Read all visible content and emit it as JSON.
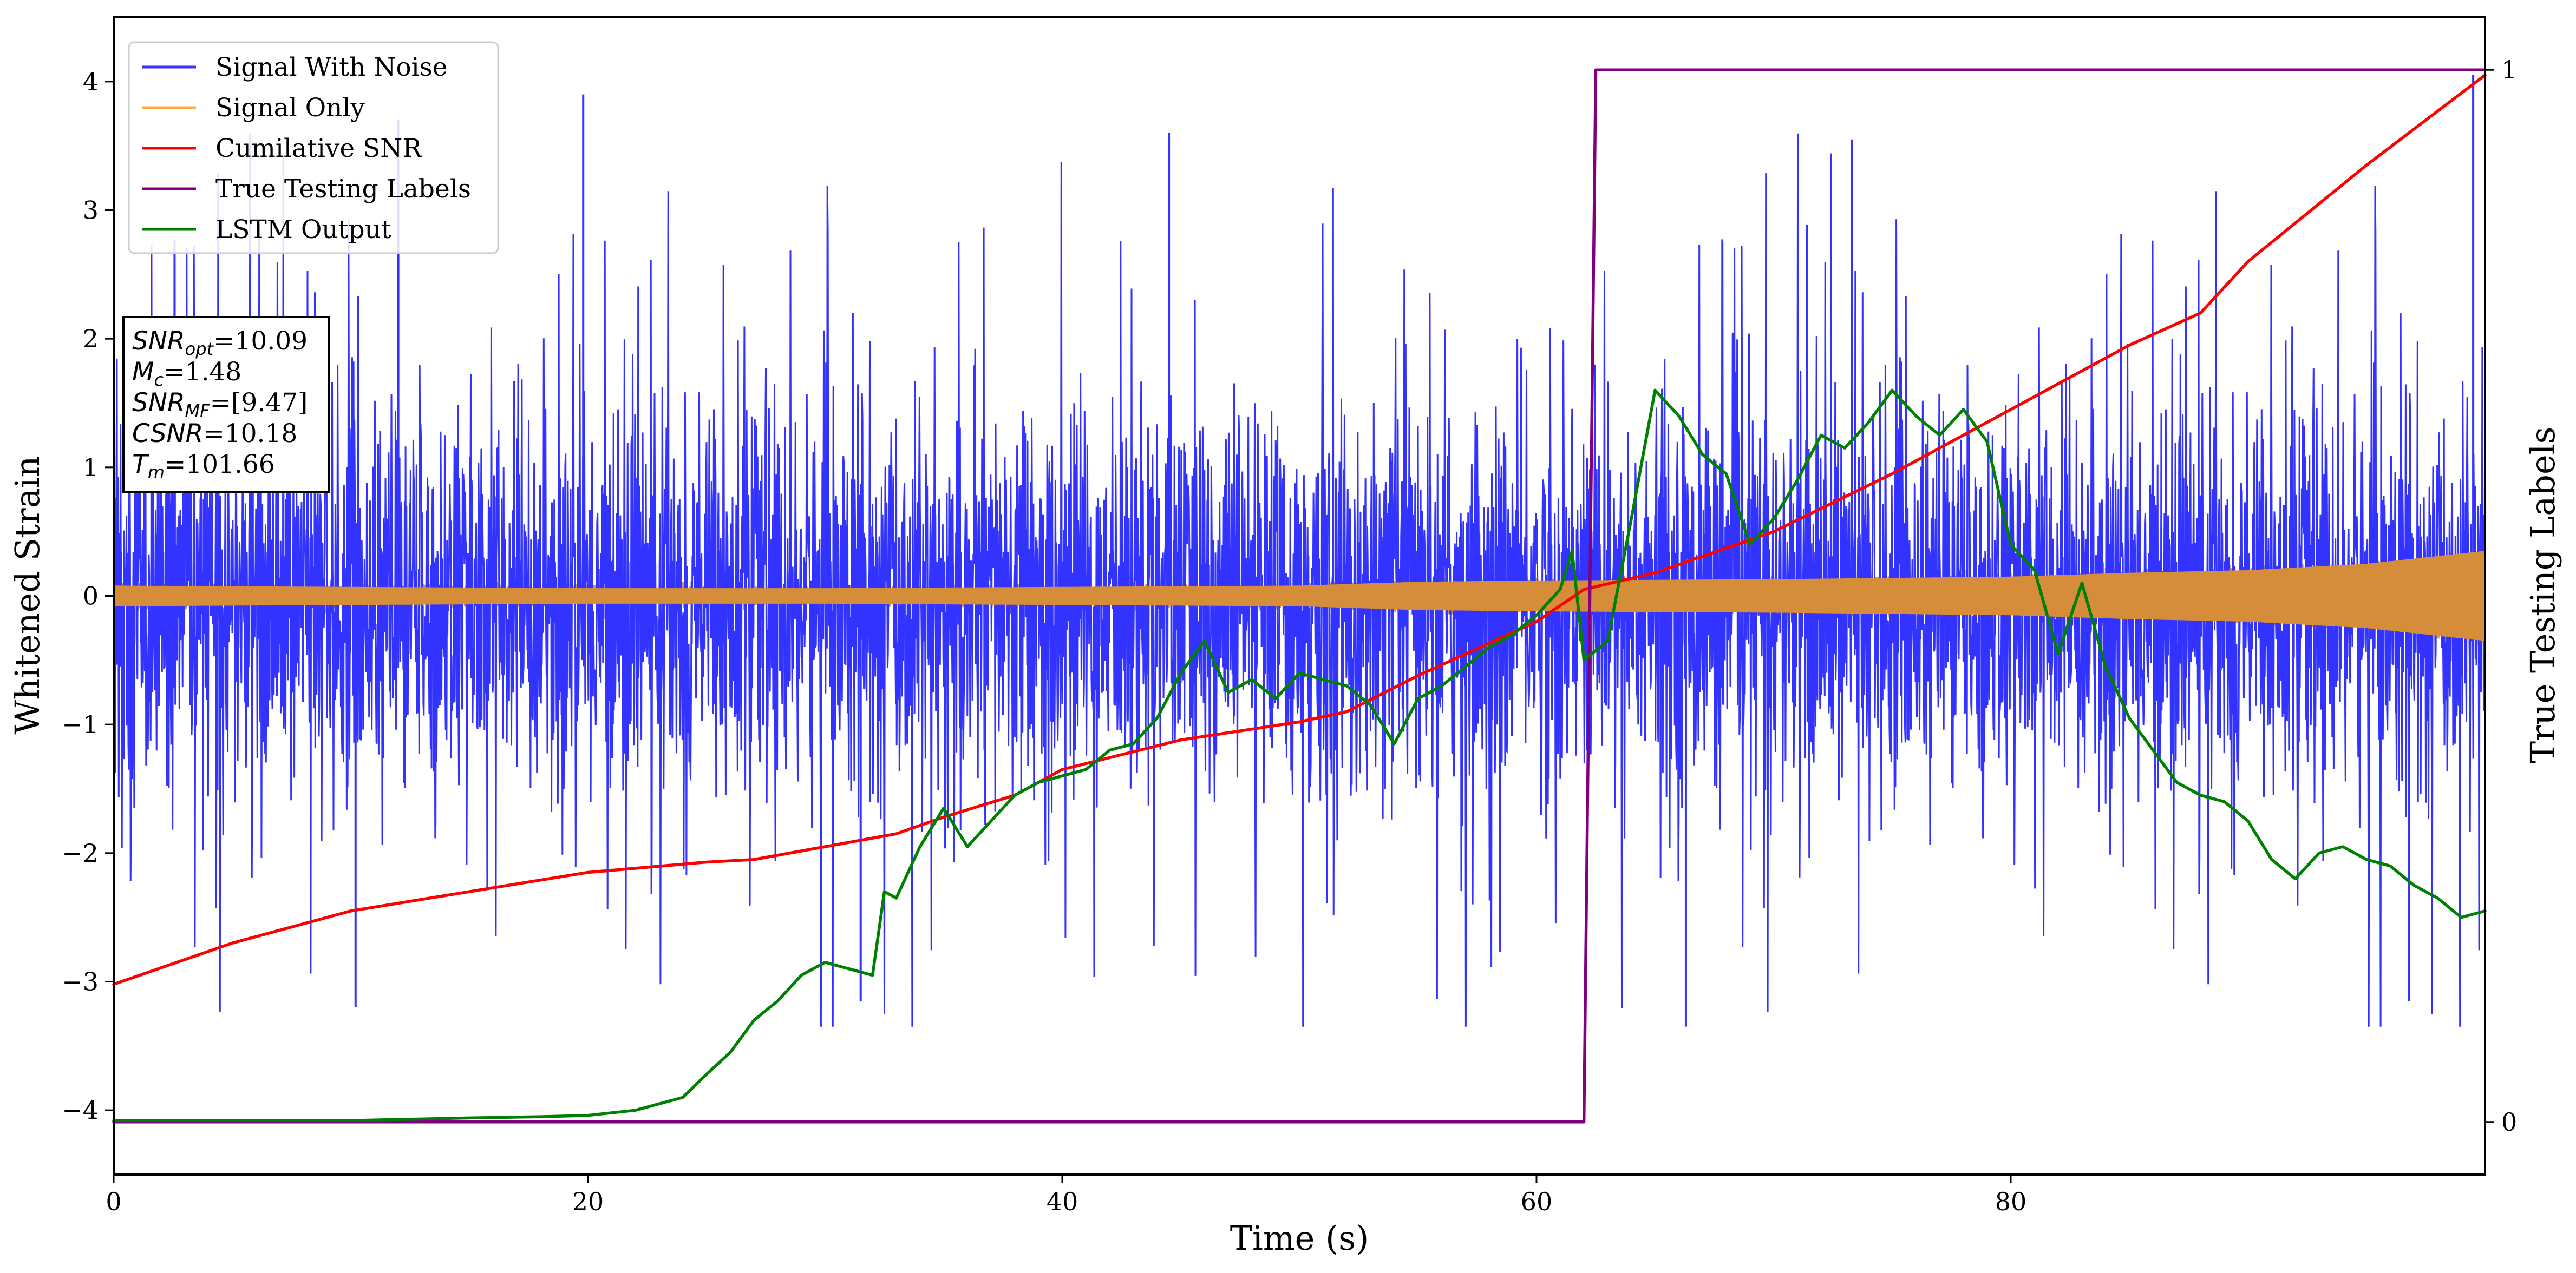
{
  "chart_data": {
    "type": "line",
    "xlabel": "Time (s)",
    "ylabel": "Whitened Strain",
    "ylabel_right": "True Testing Labels",
    "xlim": [
      0,
      100
    ],
    "ylim": [
      -4.5,
      4.5
    ],
    "ylim_right": [
      -0.05,
      1.05
    ],
    "x_ticks": [
      0,
      20,
      40,
      60,
      80
    ],
    "y_ticks": [
      -4,
      -3,
      -2,
      -1,
      0,
      1,
      2,
      3,
      4
    ],
    "y_ticks_right": [
      0,
      1
    ],
    "grid": false,
    "legend_position": "top-left",
    "legend": [
      {
        "label": "Signal With Noise",
        "color": "#3333ff"
      },
      {
        "label": "Signal Only",
        "color": "#f5b041"
      },
      {
        "label": "Cumilative SNR",
        "color": "#ff0000"
      },
      {
        "label": "True Testing Labels",
        "color": "#800080"
      },
      {
        "label": "LSTM Output",
        "color": "#008000"
      }
    ],
    "annotation": [
      {
        "sym": "SNR",
        "sub": "opt",
        "value": "=10.09"
      },
      {
        "sym": "M",
        "sub": "c",
        "value": "=1.48"
      },
      {
        "sym": "SNR",
        "sub": "MF",
        "value": "=[9.47]"
      },
      {
        "sym": "CSNR",
        "sub": "",
        "value": "=10.18"
      },
      {
        "sym": "T",
        "sub": "m",
        "value": "=101.66"
      }
    ],
    "series": [
      {
        "name": "Signal With Noise",
        "color": "#3333ff",
        "noise_band_center": -0.05,
        "spike_max": 3.9,
        "spike_min": -3.35
      },
      {
        "name": "Signal Only",
        "color": "#f5b041",
        "envelope": {
          "x": [
            0,
            10,
            20,
            30,
            40,
            50,
            55,
            60,
            70,
            80,
            85,
            90,
            95,
            100
          ],
          "amplitude": [
            0.08,
            0.07,
            0.06,
            0.06,
            0.07,
            0.08,
            0.11,
            0.12,
            0.13,
            0.15,
            0.18,
            0.2,
            0.25,
            0.35
          ]
        }
      },
      {
        "name": "Cumilative SNR",
        "color": "#ff0000",
        "axis": "left",
        "x": [
          0,
          5,
          10,
          15,
          20,
          25,
          27,
          30,
          33,
          35,
          38,
          40,
          45,
          50,
          52,
          55,
          60,
          62,
          65,
          70,
          75,
          80,
          85,
          88,
          90,
          95,
          100
        ],
        "y": [
          -3.02,
          -2.7,
          -2.45,
          -2.3,
          -2.15,
          -2.07,
          -2.05,
          -1.95,
          -1.85,
          -1.72,
          -1.55,
          -1.35,
          -1.12,
          -0.98,
          -0.9,
          -0.62,
          -0.2,
          0.05,
          0.18,
          0.5,
          0.95,
          1.45,
          1.95,
          2.2,
          2.6,
          3.35,
          4.05
        ]
      },
      {
        "name": "True Testing Labels",
        "color": "#800080",
        "axis": "right",
        "x": [
          0,
          62,
          62.5,
          100
        ],
        "y": [
          0,
          0,
          1,
          1
        ]
      },
      {
        "name": "LSTM Output",
        "color": "#008000",
        "axis": "left",
        "x": [
          0,
          5,
          10,
          15,
          18,
          20,
          22,
          24,
          25,
          26,
          27,
          28,
          29,
          30,
          31,
          32,
          32.5,
          33,
          34,
          35,
          36,
          37,
          38,
          39,
          40,
          41,
          42,
          43,
          44,
          45,
          46,
          47,
          48,
          49,
          50,
          51,
          52,
          53,
          54,
          55,
          56,
          57,
          58,
          59,
          60,
          61,
          61.5,
          62,
          63,
          64,
          65,
          66,
          67,
          68,
          69,
          70,
          71,
          72,
          73,
          74,
          75,
          76,
          77,
          78,
          79,
          80,
          81,
          82,
          83,
          84,
          85,
          86,
          87,
          88,
          89,
          90,
          91,
          92,
          93,
          94,
          95,
          96,
          97,
          98,
          99,
          100
        ],
        "y": [
          -4.08,
          -4.08,
          -4.08,
          -4.06,
          -4.05,
          -4.04,
          -4.0,
          -3.9,
          -3.72,
          -3.55,
          -3.3,
          -3.15,
          -2.95,
          -2.85,
          -2.9,
          -2.95,
          -2.3,
          -2.35,
          -1.95,
          -1.65,
          -1.95,
          -1.75,
          -1.55,
          -1.45,
          -1.4,
          -1.35,
          -1.2,
          -1.15,
          -0.95,
          -0.6,
          -0.35,
          -0.75,
          -0.65,
          -0.8,
          -0.6,
          -0.65,
          -0.7,
          -0.85,
          -1.15,
          -0.8,
          -0.7,
          -0.55,
          -0.4,
          -0.3,
          -0.15,
          0.05,
          0.35,
          -0.5,
          -0.35,
          0.6,
          1.6,
          1.4,
          1.1,
          0.95,
          0.4,
          0.6,
          0.9,
          1.25,
          1.15,
          1.35,
          1.6,
          1.4,
          1.25,
          1.45,
          1.2,
          0.4,
          0.2,
          -0.45,
          0.1,
          -0.55,
          -0.95,
          -1.2,
          -1.45,
          -1.55,
          -1.6,
          -1.75,
          -2.05,
          -2.2,
          -2.0,
          -1.95,
          -2.05,
          -2.1,
          -2.25,
          -2.35,
          -2.5,
          -2.45
        ]
      }
    ]
  }
}
